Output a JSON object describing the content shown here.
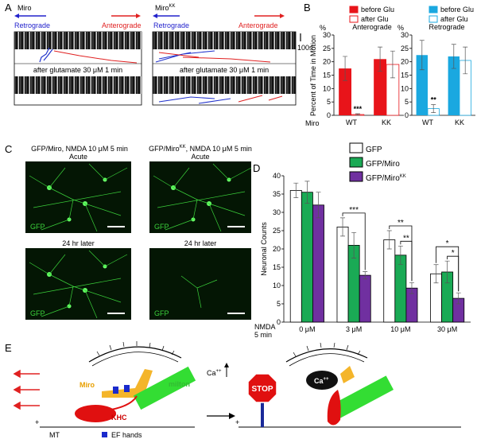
{
  "panels": {
    "A": {
      "letter": "A",
      "left": {
        "label": "Miro",
        "retro": "Retrograde",
        "antero": "Anterograde",
        "after": "after glutamate 30 μM 1 min"
      },
      "right": {
        "label": "Miro",
        "label_superscript": "KK",
        "retro": "Retrograde",
        "antero": "Anterograde",
        "after": "after glutamate 30 μM 1 min"
      },
      "scale": "100s"
    },
    "B": {
      "letter": "B",
      "y_label": "Percent of Time in Motion",
      "group_label": "Miro"
    },
    "C": {
      "letter": "C",
      "left_title": "GFP/Miro, NMDA 10 μM 5 min",
      "right_title": {
        "base": "GFP/Miro",
        "superscript": "KK",
        "rest": ", NMDA 10 μM 5 min"
      },
      "images": [
        {
          "top": "Acute",
          "label": "GFP"
        },
        {
          "top": "Acute",
          "label": "GFP"
        },
        {
          "top": "24 hr later",
          "label": "GFP"
        },
        {
          "top": "24 hr later",
          "label": "GFP"
        }
      ]
    },
    "D": {
      "letter": "D",
      "treatment": "NMDA",
      "treatment_time": "5 min"
    },
    "E": {
      "letter": "E",
      "miro": "Miro",
      "milton": "milton",
      "khc": "KHC",
      "mt": "MT",
      "plus": "+",
      "ef_hands": "EF hands",
      "ca": "Ca",
      "ca_superscript": "++",
      "stop": "STOP"
    }
  },
  "chart_data": [
    {
      "type": "bar",
      "title": "Anterograde",
      "y_unit": "%",
      "categories": [
        "WT",
        "KK"
      ],
      "series": [
        {
          "name": "before Glu",
          "color": "#e8141a",
          "fill": "solid",
          "values": [
            17.5,
            21
          ],
          "errors": [
            4.5,
            4.5
          ]
        },
        {
          "name": "after Glu",
          "color": "#e8141a",
          "fill": "outline",
          "values": [
            0.3,
            19
          ],
          "errors": [
            0.3,
            5
          ]
        }
      ],
      "ylim": [
        0,
        30
      ],
      "yticks": [
        0,
        5,
        10,
        15,
        20,
        25,
        30
      ],
      "annotations": [
        {
          "text": "***",
          "category": "WT"
        }
      ]
    },
    {
      "type": "bar",
      "title": "Retrograde",
      "y_unit": "%",
      "categories": [
        "WT",
        "KK"
      ],
      "series": [
        {
          "name": "before Glu",
          "color": "#1aa8e0",
          "fill": "solid",
          "values": [
            22.5,
            22
          ],
          "errors": [
            5.5,
            4.5
          ]
        },
        {
          "name": "after Glu",
          "color": "#1aa8e0",
          "fill": "outline",
          "values": [
            2.5,
            20.5
          ],
          "errors": [
            1.5,
            5
          ]
        }
      ],
      "ylim": [
        0,
        30
      ],
      "yticks": [
        0,
        5,
        10,
        15,
        20,
        25,
        30
      ],
      "annotations": [
        {
          "text": "**",
          "category": "WT"
        }
      ]
    },
    {
      "type": "bar",
      "y_label": "Neuronal Counts",
      "categories": [
        "0 μM",
        "3 μM",
        "10 μM",
        "30 μM"
      ],
      "edgecolor": "#000000",
      "series": [
        {
          "name": "GFP",
          "color": "#ffffff",
          "fill": "solid",
          "values": [
            36,
            26,
            22.5,
            13.2
          ],
          "errors": [
            2,
            2.5,
            2.5,
            2.5
          ]
        },
        {
          "name": "GFP/Miro",
          "color": "#1aaa55",
          "fill": "solid",
          "values": [
            35.5,
            21,
            18.3,
            13.7
          ],
          "errors": [
            3,
            3.5,
            2.5,
            3
          ]
        },
        {
          "name": "GFP/Miro",
          "name_superscript": "KK",
          "color": "#7030a0",
          "fill": "solid",
          "values": [
            32,
            12.8,
            9.3,
            6.5
          ],
          "errors": [
            3.5,
            1,
            1.5,
            1.5
          ]
        }
      ],
      "ylim": [
        0,
        40
      ],
      "yticks": [
        0,
        5,
        10,
        15,
        20,
        25,
        30,
        35,
        40
      ],
      "annotations": [
        {
          "text": "***",
          "category": "3 μM"
        },
        {
          "text": "**",
          "category": "10 μM"
        },
        {
          "text": "**",
          "category": "10 μM"
        },
        {
          "text": "*",
          "category": "30 μM"
        },
        {
          "text": "*",
          "category": "30 μM"
        }
      ]
    }
  ]
}
